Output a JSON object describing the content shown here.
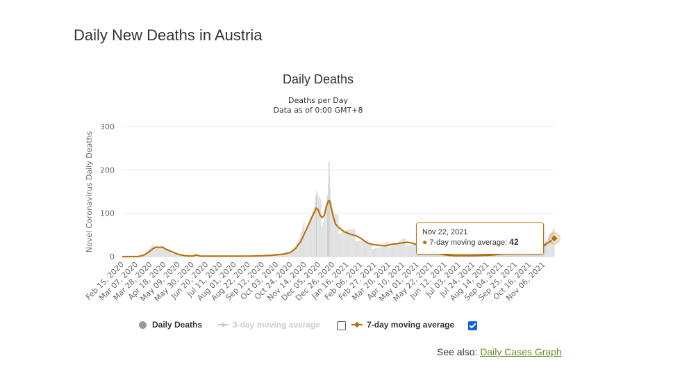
{
  "page": {
    "title": "Daily New Deaths in Austria"
  },
  "chart_data": {
    "type": "bar",
    "title": "Daily Deaths",
    "subtitle_line1": "Deaths per Day",
    "subtitle_line2": "Data as of 0:00 GMT+8",
    "ylabel": "Novel Coronavirus Daily Deaths",
    "xlabel": "",
    "ylim": [
      0,
      300
    ],
    "yticks": [
      0,
      100,
      200,
      300
    ],
    "grid": true,
    "legend_position": "bottom",
    "x_start": "2020-02-15",
    "x_end": "2021-11-22",
    "x_tick_labels": [
      "Feb 15, 2020",
      "Mar 07, 2020",
      "Mar 28, 2020",
      "Apr 18, 2020",
      "May 09, 2020",
      "May 30, 2020",
      "Jun 20, 2020",
      "Jul 11, 2020",
      "Aug 01, 2020",
      "Aug 22, 2020",
      "Sep 12, 2020",
      "Oct 03, 2020",
      "Oct 24, 2020",
      "Nov 14, 2020",
      "Dec 05, 2020",
      "Dec 26, 2020",
      "Jan 16, 2021",
      "Feb 06, 2021",
      "Feb 27, 2021",
      "Mar 20, 2021",
      "Apr 10, 2021",
      "May 01, 2021",
      "May 22, 2021",
      "Jun 12, 2021",
      "Jul 03, 2021",
      "Jul 24, 2021",
      "Aug 14, 2021",
      "Sep 04, 2021",
      "Sep 25, 2021",
      "Oct 16, 2021",
      "Nov 06, 2021"
    ],
    "series": [
      {
        "name": "Daily Deaths",
        "color": "#999999",
        "visible": true,
        "points": [
          [
            "2020-03-12",
            1
          ],
          [
            "2020-03-20",
            6
          ],
          [
            "2020-03-28",
            18
          ],
          [
            "2020-04-04",
            26
          ],
          [
            "2020-04-10",
            22
          ],
          [
            "2020-04-18",
            18
          ],
          [
            "2020-04-28",
            10
          ],
          [
            "2020-05-09",
            3
          ],
          [
            "2020-05-30",
            1
          ],
          [
            "2020-06-20",
            1
          ],
          [
            "2020-07-11",
            1
          ],
          [
            "2020-08-22",
            1
          ],
          [
            "2020-09-12",
            2
          ],
          [
            "2020-10-03",
            4
          ],
          [
            "2020-10-24",
            12
          ],
          [
            "2020-11-07",
            40
          ],
          [
            "2020-11-14",
            70
          ],
          [
            "2020-11-21",
            95
          ],
          [
            "2020-11-28",
            110
          ],
          [
            "2020-12-01",
            140
          ],
          [
            "2020-12-05",
            115
          ],
          [
            "2020-12-10",
            95
          ],
          [
            "2020-12-15",
            120
          ],
          [
            "2020-12-18",
            140
          ],
          [
            "2020-12-20",
            218
          ],
          [
            "2020-12-23",
            125
          ],
          [
            "2020-12-28",
            85
          ],
          [
            "2021-01-05",
            70
          ],
          [
            "2021-01-16",
            60
          ],
          [
            "2021-01-25",
            52
          ],
          [
            "2021-02-06",
            40
          ],
          [
            "2021-02-20",
            25
          ],
          [
            "2021-03-05",
            22
          ],
          [
            "2021-03-20",
            28
          ],
          [
            "2021-04-10",
            35
          ],
          [
            "2021-04-25",
            28
          ],
          [
            "2021-05-10",
            18
          ],
          [
            "2021-05-22",
            8
          ],
          [
            "2021-06-12",
            4
          ],
          [
            "2021-07-03",
            2
          ],
          [
            "2021-07-24",
            2
          ],
          [
            "2021-08-14",
            3
          ],
          [
            "2021-09-04",
            8
          ],
          [
            "2021-09-25",
            12
          ],
          [
            "2021-10-16",
            15
          ],
          [
            "2021-11-06",
            30
          ],
          [
            "2021-11-15",
            45
          ],
          [
            "2021-11-22",
            55
          ]
        ]
      },
      {
        "name": "3-day moving average",
        "color": "#cccccc",
        "visible": false
      },
      {
        "name": "7-day moving average",
        "color": "#b8730e",
        "visible": true,
        "points": [
          [
            "2020-02-15",
            0
          ],
          [
            "2020-03-10",
            0
          ],
          [
            "2020-03-18",
            3
          ],
          [
            "2020-03-25",
            10
          ],
          [
            "2020-04-01",
            18
          ],
          [
            "2020-04-05",
            22
          ],
          [
            "2020-04-10",
            21
          ],
          [
            "2020-04-15",
            22
          ],
          [
            "2020-04-20",
            17
          ],
          [
            "2020-04-25",
            14
          ],
          [
            "2020-05-01",
            10
          ],
          [
            "2020-05-09",
            5
          ],
          [
            "2020-05-20",
            2
          ],
          [
            "2020-05-30",
            1
          ],
          [
            "2020-06-05",
            4
          ],
          [
            "2020-06-10",
            1
          ],
          [
            "2020-06-20",
            1
          ],
          [
            "2020-07-11",
            1
          ],
          [
            "2020-08-01",
            1
          ],
          [
            "2020-08-22",
            1
          ],
          [
            "2020-09-12",
            2
          ],
          [
            "2020-09-25",
            3
          ],
          [
            "2020-10-03",
            4
          ],
          [
            "2020-10-15",
            6
          ],
          [
            "2020-10-24",
            10
          ],
          [
            "2020-11-01",
            20
          ],
          [
            "2020-11-08",
            35
          ],
          [
            "2020-11-14",
            55
          ],
          [
            "2020-11-20",
            75
          ],
          [
            "2020-11-25",
            92
          ],
          [
            "2020-11-29",
            105
          ],
          [
            "2020-12-01",
            112
          ],
          [
            "2020-12-04",
            108
          ],
          [
            "2020-12-07",
            95
          ],
          [
            "2020-12-10",
            90
          ],
          [
            "2020-12-13",
            95
          ],
          [
            "2020-12-16",
            115
          ],
          [
            "2020-12-19",
            128
          ],
          [
            "2020-12-21",
            129
          ],
          [
            "2020-12-23",
            115
          ],
          [
            "2020-12-26",
            95
          ],
          [
            "2020-12-30",
            75
          ],
          [
            "2021-01-03",
            68
          ],
          [
            "2021-01-08",
            62
          ],
          [
            "2021-01-12",
            57
          ],
          [
            "2021-01-16",
            55
          ],
          [
            "2021-01-20",
            52
          ],
          [
            "2021-01-25",
            50
          ],
          [
            "2021-01-30",
            48
          ],
          [
            "2021-02-06",
            42
          ],
          [
            "2021-02-12",
            35
          ],
          [
            "2021-02-18",
            30
          ],
          [
            "2021-02-27",
            27
          ],
          [
            "2021-03-07",
            26
          ],
          [
            "2021-03-15",
            25
          ],
          [
            "2021-03-20",
            27
          ],
          [
            "2021-03-27",
            29
          ],
          [
            "2021-04-03",
            30
          ],
          [
            "2021-04-10",
            32
          ],
          [
            "2021-04-17",
            33
          ],
          [
            "2021-04-24",
            31
          ],
          [
            "2021-05-01",
            27
          ],
          [
            "2021-05-08",
            22
          ],
          [
            "2021-05-15",
            18
          ],
          [
            "2021-05-22",
            12
          ],
          [
            "2021-06-01",
            7
          ],
          [
            "2021-06-12",
            4
          ],
          [
            "2021-06-25",
            2
          ],
          [
            "2021-07-03",
            2
          ],
          [
            "2021-07-24",
            2
          ],
          [
            "2021-08-14",
            3
          ],
          [
            "2021-08-30",
            5
          ],
          [
            "2021-09-15",
            8
          ],
          [
            "2021-09-25",
            10
          ],
          [
            "2021-10-05",
            11
          ],
          [
            "2021-10-16",
            13
          ],
          [
            "2021-10-26",
            17
          ],
          [
            "2021-11-06",
            24
          ],
          [
            "2021-11-14",
            33
          ],
          [
            "2021-11-22",
            42
          ]
        ]
      }
    ],
    "tooltip": {
      "date": "Nov 22, 2021",
      "series": "7-day moving average",
      "value": 42
    }
  },
  "legend": {
    "daily_deaths_label": "Daily Deaths",
    "ma3_label": "3-day moving average",
    "ma7_label": "7-day moving average",
    "ma3_checked": false,
    "ma7_checked": true
  },
  "tooltip": {
    "date": "Nov 22, 2021",
    "series_label": "7-day moving average: ",
    "value": "42"
  },
  "see_also": {
    "prefix": "See also: ",
    "link_label": "Daily Cases Graph"
  }
}
